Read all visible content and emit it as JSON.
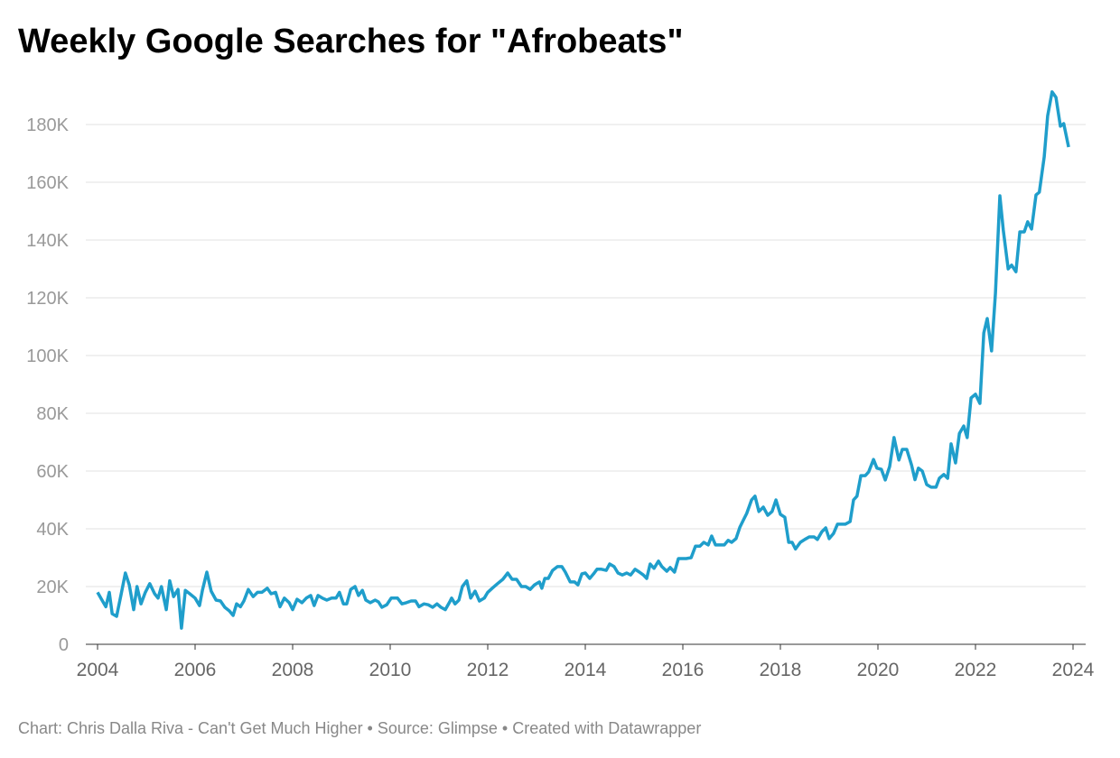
{
  "chart_data": {
    "type": "line",
    "title": "Weekly Google Searches for \"Afrobeats\"",
    "footer": "Chart: Chris Dalla Riva - Can't Get Much Higher • Source: Glimpse • Created with Datawrapper",
    "xlim": [
      2004,
      2024
    ],
    "xticks": [
      2004,
      2006,
      2008,
      2010,
      2012,
      2014,
      2016,
      2018,
      2020,
      2022,
      2024
    ],
    "ylim": [
      0,
      180000
    ],
    "yticks": [
      0,
      {
        "value": 20000,
        "label": "20K"
      },
      {
        "value": 40000,
        "label": "40K"
      },
      {
        "value": 60000,
        "label": "60K"
      },
      {
        "value": 80000,
        "label": "80K"
      },
      {
        "value": 100000,
        "label": "100K"
      },
      {
        "value": 120000,
        "label": "120K"
      },
      {
        "value": 140000,
        "label": "140K"
      },
      {
        "value": 160000,
        "label": "160K"
      },
      {
        "value": 180000,
        "label": "180K"
      }
    ],
    "grid": true,
    "x": [
      2004.0,
      2004.09,
      2004.17,
      2004.24,
      2004.3,
      2004.39,
      2004.48,
      2004.57,
      2004.65,
      2004.74,
      2004.81,
      2004.89,
      2004.98,
      2005.07,
      2005.17,
      2005.24,
      2005.31,
      2005.41,
      2005.48,
      2005.56,
      2005.65,
      2005.72,
      2005.8,
      2005.89,
      2006.0,
      2006.09,
      2006.15,
      2006.24,
      2006.33,
      2006.43,
      2006.52,
      2006.61,
      2006.7,
      2006.78,
      2006.85,
      2006.93,
      2007.0,
      2007.09,
      2007.19,
      2007.28,
      2007.37,
      2007.48,
      2007.56,
      2007.65,
      2007.74,
      2007.83,
      2007.93,
      2008.0,
      2008.09,
      2008.19,
      2008.28,
      2008.37,
      2008.44,
      2008.52,
      2008.61,
      2008.7,
      2008.8,
      2008.89,
      2008.96,
      2009.04,
      2009.11,
      2009.19,
      2009.28,
      2009.35,
      2009.43,
      2009.5,
      2009.59,
      2009.69,
      2009.76,
      2009.83,
      2009.93,
      2010.02,
      2010.15,
      2010.24,
      2010.33,
      2010.43,
      2010.52,
      2010.59,
      2010.69,
      2010.78,
      2010.87,
      2010.96,
      2011.04,
      2011.13,
      2011.22,
      2011.26,
      2011.33,
      2011.41,
      2011.48,
      2011.57,
      2011.65,
      2011.74,
      2011.83,
      2011.93,
      2012.0,
      2012.09,
      2012.2,
      2012.31,
      2012.41,
      2012.5,
      2012.59,
      2012.69,
      2012.78,
      2012.87,
      2012.96,
      2013.06,
      2013.11,
      2013.17,
      2013.24,
      2013.33,
      2013.43,
      2013.52,
      2013.59,
      2013.69,
      2013.78,
      2013.85,
      2013.93,
      2014.0,
      2014.09,
      2014.17,
      2014.24,
      2014.33,
      2014.43,
      2014.5,
      2014.59,
      2014.67,
      2014.76,
      2014.85,
      2014.93,
      2015.02,
      2015.11,
      2015.19,
      2015.26,
      2015.33,
      2015.41,
      2015.5,
      2015.57,
      2015.67,
      2015.74,
      2015.83,
      2015.91,
      2015.98,
      2016.07,
      2016.17,
      2016.26,
      2016.35,
      2016.43,
      2016.52,
      2016.59,
      2016.67,
      2016.76,
      2016.85,
      2016.93,
      2017.0,
      2017.09,
      2017.17,
      2017.24,
      2017.31,
      2017.41,
      2017.48,
      2017.56,
      2017.65,
      2017.74,
      2017.83,
      2017.91,
      2018.0,
      2018.09,
      2018.17,
      2018.24,
      2018.31,
      2018.41,
      2018.5,
      2018.59,
      2018.69,
      2018.76,
      2018.85,
      2018.93,
      2019.0,
      2019.09,
      2019.17,
      2019.26,
      2019.33,
      2019.43,
      2019.5,
      2019.57,
      2019.65,
      2019.74,
      2019.81,
      2019.91,
      2019.98,
      2020.07,
      2020.15,
      2020.24,
      2020.33,
      2020.43,
      2020.5,
      2020.59,
      2020.69,
      2020.76,
      2020.83,
      2020.91,
      2021.0,
      2021.09,
      2021.19,
      2021.26,
      2021.35,
      2021.43,
      2021.5,
      2021.59,
      2021.67,
      2021.76,
      2021.83,
      2021.91,
      2022.0,
      2022.09,
      2022.17,
      2022.24,
      2022.33,
      2022.41,
      2022.5,
      2022.57,
      2022.67,
      2022.74,
      2022.83,
      2022.91,
      2023.0,
      2023.07,
      2023.15,
      2023.24,
      2023.31,
      2023.41,
      2023.48,
      2023.57,
      2023.65,
      2023.74,
      2023.81,
      2023.91
    ],
    "series": [
      {
        "name": "Afrobeats",
        "color": "#1f9ecb",
        "values": [
          18000,
          15300,
          13000,
          18000,
          10600,
          9700,
          17000,
          24700,
          20600,
          12000,
          20000,
          14000,
          18000,
          21000,
          17500,
          16000,
          20000,
          12000,
          22000,
          16500,
          19000,
          5600,
          18700,
          17500,
          16000,
          13400,
          18700,
          25000,
          18400,
          15300,
          15000,
          12800,
          11600,
          10000,
          14000,
          13000,
          15000,
          19000,
          16500,
          18000,
          18000,
          19400,
          17500,
          18000,
          13000,
          16000,
          14400,
          12000,
          15600,
          14400,
          16000,
          16900,
          13400,
          16900,
          16000,
          15300,
          16000,
          16000,
          18000,
          14000,
          14000,
          19000,
          20000,
          16900,
          18700,
          15300,
          14400,
          15300,
          14700,
          12800,
          13700,
          16000,
          16000,
          14000,
          14400,
          15000,
          15000,
          13000,
          14000,
          13700,
          12800,
          14000,
          12800,
          12000,
          14700,
          16000,
          14000,
          15300,
          20000,
          22000,
          16000,
          18400,
          15000,
          16000,
          18000,
          19400,
          21000,
          22500,
          24700,
          22500,
          22500,
          20000,
          20000,
          19000,
          20600,
          21600,
          19400,
          22800,
          22800,
          25600,
          26900,
          26900,
          25000,
          21600,
          21600,
          20600,
          24400,
          24700,
          22800,
          24400,
          26000,
          26000,
          25600,
          27800,
          26900,
          24700,
          24000,
          24700,
          24000,
          26000,
          25000,
          24000,
          22800,
          27800,
          26300,
          28800,
          26900,
          25300,
          26600,
          25000,
          29700,
          29700,
          29700,
          30000,
          34000,
          34000,
          35300,
          34400,
          37500,
          34400,
          34400,
          34400,
          36000,
          35300,
          36600,
          40600,
          43000,
          45300,
          50000,
          51300,
          46000,
          47500,
          44700,
          46000,
          50000,
          45000,
          44000,
          35300,
          35300,
          33000,
          35300,
          36300,
          37200,
          37200,
          36300,
          39000,
          40300,
          36600,
          38400,
          41600,
          41600,
          41600,
          42500,
          50000,
          51300,
          58400,
          58400,
          59700,
          64000,
          61000,
          60600,
          56900,
          61600,
          71600,
          63800,
          67500,
          67500,
          62000,
          57000,
          61000,
          60000,
          55300,
          54400,
          54400,
          57500,
          58800,
          57500,
          69400,
          62800,
          73000,
          75600,
          71600,
          85300,
          86600,
          83400,
          107800,
          112800,
          101600,
          121600,
          155300,
          143400,
          130000,
          131300,
          129000,
          142800,
          142800,
          146300,
          143800,
          155600,
          156600,
          168800,
          183000,
          191300,
          189400,
          179400,
          180300,
          172200
        ]
      }
    ]
  }
}
